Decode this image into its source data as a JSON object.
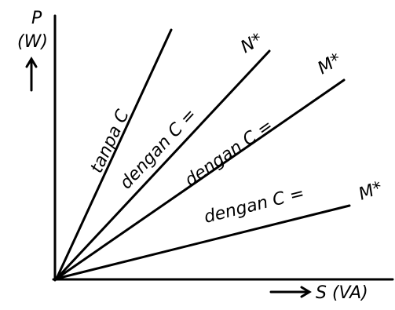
{
  "axes": {
    "y_label": "P",
    "y_unit": "(W)",
    "x_label": "S (VA)"
  },
  "lines": [
    {
      "label": "tanpa C"
    },
    {
      "label": "dengan C =",
      "value": "N*"
    },
    {
      "label": "dengan C =",
      "value": "M*"
    },
    {
      "label": "dengan C =",
      "value": "M*"
    }
  ]
}
